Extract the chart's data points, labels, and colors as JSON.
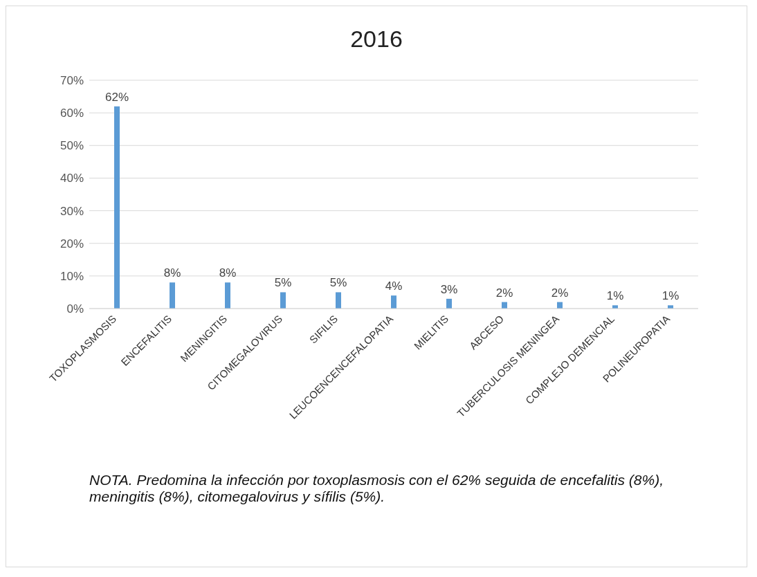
{
  "chart_data": {
    "type": "bar",
    "title": "2016",
    "categories": [
      "TOXOPLASMOSIS",
      "ENCEFALITIS",
      "MENINGITIS",
      "CITOMEGALOVIRUS",
      "SIFILIS",
      "LEUCOENCENCEFALOPATIA",
      "MIELITIS",
      "ABCESO",
      "TUBERCULOSIS MENINGEA",
      "COMPLEJO DEMENCIAL",
      "POLINEUROPATIA"
    ],
    "values": [
      62,
      8,
      8,
      5,
      5,
      4,
      3,
      2,
      2,
      1,
      1
    ],
    "value_labels": [
      "62%",
      "8%",
      "8%",
      "5%",
      "5%",
      "4%",
      "3%",
      "2%",
      "2%",
      "1%",
      "1%"
    ],
    "color": "#5b9bd5",
    "ylim": [
      0,
      70
    ],
    "yticks": [
      {
        "value": 0,
        "label": "0%"
      },
      {
        "value": 10,
        "label": "10%"
      },
      {
        "value": 20,
        "label": "20%"
      },
      {
        "value": 30,
        "label": "30%"
      },
      {
        "value": 40,
        "label": "40%"
      },
      {
        "value": 50,
        "label": "50%"
      },
      {
        "value": 60,
        "label": "60%"
      },
      {
        "value": 70,
        "label": "70%"
      }
    ],
    "grid": "y",
    "annotations": [
      "NOTA. Predomina la infección por toxoplasmosis con el 62% seguida de encefalitis (8%), meningitis (8%), citomegalovirus y sífilis (5%)."
    ]
  }
}
